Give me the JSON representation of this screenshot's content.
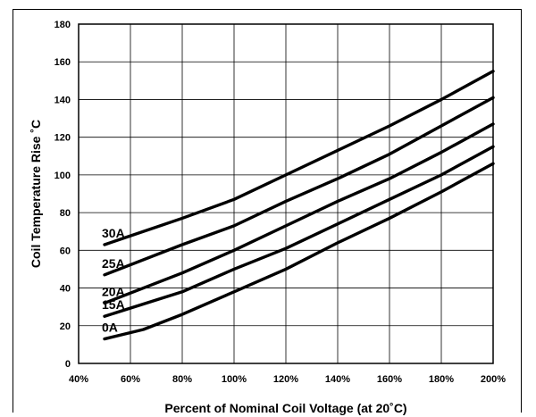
{
  "chart_data": {
    "type": "line",
    "title": "",
    "xlabel": "Percent of Nominal Coil Voltage (at 20˚C)",
    "ylabel": "Coil Temperature Rise ˚C",
    "xlim": [
      40,
      200
    ],
    "ylim": [
      0,
      180
    ],
    "x_ticks": [
      40,
      60,
      80,
      100,
      120,
      140,
      160,
      180,
      200
    ],
    "x_tick_labels": [
      "40%",
      "60%",
      "80%",
      "100%",
      "120%",
      "140%",
      "160%",
      "180%",
      "200%"
    ],
    "y_ticks": [
      0,
      20,
      40,
      60,
      80,
      100,
      120,
      140,
      160,
      180
    ],
    "y_tick_labels": [
      "0",
      "20",
      "40",
      "60",
      "80",
      "100",
      "120",
      "140",
      "160",
      "180"
    ],
    "grid": true,
    "series": [
      {
        "name": "30A",
        "x": [
          50,
          80,
          100,
          120,
          140,
          160,
          180,
          200
        ],
        "y": [
          63,
          77,
          87,
          100,
          113,
          126,
          140,
          155
        ]
      },
      {
        "name": "25A",
        "x": [
          50,
          80,
          100,
          120,
          140,
          160,
          180,
          200
        ],
        "y": [
          47,
          63,
          73,
          86,
          98,
          111,
          126,
          141
        ]
      },
      {
        "name": "20A",
        "x": [
          50,
          80,
          100,
          120,
          140,
          160,
          180,
          200
        ],
        "y": [
          32,
          48,
          60,
          73,
          86,
          98,
          112,
          127
        ]
      },
      {
        "name": "15A",
        "x": [
          50,
          80,
          100,
          120,
          140,
          160,
          180,
          200
        ],
        "y": [
          25,
          38,
          50,
          61,
          74,
          87,
          100,
          115
        ]
      },
      {
        "name": "0A",
        "x": [
          50,
          65,
          80,
          100,
          120,
          140,
          160,
          180,
          200
        ],
        "y": [
          13,
          18,
          26,
          38,
          50,
          64,
          77,
          91,
          106
        ]
      }
    ]
  }
}
